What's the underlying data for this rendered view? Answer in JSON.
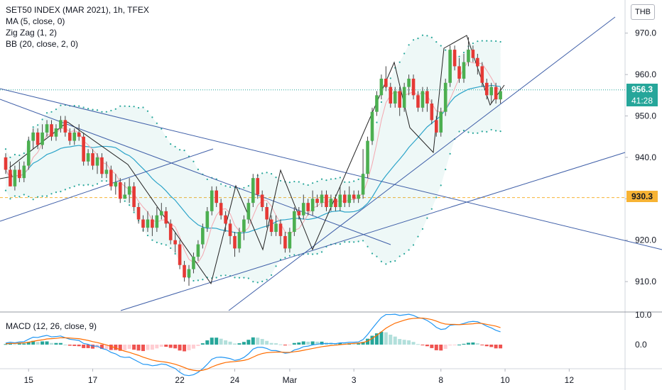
{
  "header": {
    "title": "SET50 INDEX (MAR 2021), 1h, TFEX",
    "indicators": [
      "MA (5, close, 0)",
      "Zig Zag (1, 2)",
      "BB (20, close, 2, 0)"
    ],
    "currency": "THB",
    "macd_label": "MACD (12, 26, close, 9)"
  },
  "price_tag": {
    "value": "956.3",
    "countdown": "41:28",
    "color": "#26a69a"
  },
  "ref_tag": {
    "value": "930.3",
    "color": "#f7b334"
  },
  "chart_data": {
    "type": "line",
    "title": "SET50 INDEX (MAR 2021), 1h, TFEX",
    "y_axis": {
      "ticks": [
        910.0,
        920.0,
        930.0,
        940.0,
        950.0,
        960.0,
        970.0
      ],
      "range": [
        903,
        978
      ]
    },
    "x_axis": {
      "tick_labels": [
        "15",
        "17",
        "22",
        "24",
        "Mar",
        "3",
        "8",
        "10",
        "12"
      ],
      "range_bars": [
        0,
        145
      ]
    },
    "last_price": 956.3,
    "reference_level": 930.3,
    "candles": [
      [
        940,
        937,
        941,
        936
      ],
      [
        937,
        933,
        939,
        933
      ],
      [
        933,
        937,
        938,
        932
      ],
      [
        937,
        935,
        939,
        934
      ],
      [
        935,
        938,
        939,
        934
      ],
      [
        938,
        944,
        945,
        937
      ],
      [
        944,
        946,
        947,
        942
      ],
      [
        946,
        943,
        947,
        942
      ],
      [
        943,
        946,
        948,
        942
      ],
      [
        946,
        948,
        949,
        945
      ],
      [
        948,
        945,
        949,
        944
      ],
      [
        945,
        947,
        948,
        944
      ],
      [
        947,
        949,
        950,
        946
      ],
      [
        949,
        946,
        950,
        945
      ],
      [
        946,
        944,
        947,
        943
      ],
      [
        944,
        946,
        947,
        943
      ],
      [
        946,
        945,
        948,
        944
      ],
      [
        945,
        939,
        946,
        938
      ],
      [
        939,
        941,
        942,
        938
      ],
      [
        941,
        938,
        942,
        937
      ],
      [
        938,
        940,
        941,
        936
      ],
      [
        940,
        936,
        941,
        935
      ],
      [
        936,
        937,
        939,
        935
      ],
      [
        937,
        933,
        938,
        932
      ],
      [
        933,
        934,
        936,
        931
      ],
      [
        934,
        930,
        935,
        929
      ],
      [
        930,
        931,
        934,
        930
      ],
      [
        931,
        933,
        935,
        929
      ],
      [
        933,
        928,
        934,
        927
      ],
      [
        928,
        925,
        929,
        924
      ],
      [
        925,
        923,
        926,
        922
      ],
      [
        923,
        925,
        927,
        922
      ],
      [
        925,
        923,
        926,
        921
      ],
      [
        923,
        926,
        928,
        922
      ],
      [
        926,
        927,
        929,
        925
      ],
      [
        927,
        924,
        928,
        923
      ],
      [
        924,
        920,
        925,
        919
      ],
      [
        920,
        919,
        922,
        917
      ],
      [
        919,
        914,
        920,
        913
      ],
      [
        914,
        911,
        915,
        910
      ],
      [
        911,
        913,
        914,
        909
      ],
      [
        913,
        916,
        917,
        912
      ],
      [
        916,
        919,
        920,
        915
      ],
      [
        919,
        923,
        924,
        918
      ],
      [
        923,
        927,
        928,
        922
      ],
      [
        927,
        932,
        933,
        926
      ],
      [
        932,
        929,
        933,
        928
      ],
      [
        929,
        926,
        930,
        925
      ],
      [
        926,
        924,
        927,
        922
      ],
      [
        924,
        921,
        925,
        919
      ],
      [
        921,
        918,
        922,
        916
      ],
      [
        918,
        922,
        923,
        917
      ],
      [
        922,
        925,
        926,
        920
      ],
      [
        925,
        929,
        930,
        924
      ],
      [
        929,
        935,
        936,
        928
      ],
      [
        935,
        931,
        936,
        930
      ],
      [
        931,
        928,
        932,
        927
      ],
      [
        928,
        925,
        929,
        923
      ],
      [
        925,
        922,
        926,
        921
      ],
      [
        922,
        924,
        926,
        921
      ],
      [
        924,
        921,
        925,
        919
      ],
      [
        921,
        918,
        922,
        917
      ],
      [
        918,
        922,
        923,
        917
      ],
      [
        922,
        927,
        928,
        921
      ],
      [
        927,
        926,
        928,
        925
      ],
      [
        926,
        929,
        931,
        925
      ],
      [
        929,
        927,
        930,
        926
      ],
      [
        927,
        930,
        932,
        926
      ],
      [
        930,
        929,
        931,
        928
      ],
      [
        929,
        931,
        932,
        928
      ],
      [
        931,
        928,
        932,
        927
      ],
      [
        928,
        930,
        931,
        927
      ],
      [
        930,
        928,
        931,
        927
      ],
      [
        928,
        931,
        933,
        927
      ],
      [
        931,
        929,
        932,
        928
      ],
      [
        929,
        931,
        933,
        928
      ],
      [
        931,
        930,
        932,
        929
      ],
      [
        930,
        931,
        932,
        929
      ],
      [
        931,
        936,
        942,
        930
      ],
      [
        936,
        944,
        945,
        935
      ],
      [
        944,
        951,
        952,
        943
      ],
      [
        951,
        955,
        956,
        950
      ],
      [
        955,
        959,
        960,
        954
      ],
      [
        959,
        957,
        962,
        956
      ],
      [
        957,
        953,
        958,
        952
      ],
      [
        953,
        956,
        957,
        952
      ],
      [
        956,
        952,
        957,
        950
      ],
      [
        952,
        957,
        958,
        951
      ],
      [
        957,
        959,
        960,
        955
      ],
      [
        959,
        955,
        960,
        954
      ],
      [
        955,
        952,
        956,
        951
      ],
      [
        952,
        956,
        957,
        951
      ],
      [
        956,
        953,
        957,
        951
      ],
      [
        953,
        949,
        954,
        948
      ],
      [
        949,
        946,
        950,
        945
      ],
      [
        946,
        951,
        952,
        945
      ],
      [
        951,
        958,
        959,
        950
      ],
      [
        958,
        966,
        967,
        957
      ],
      [
        966,
        962,
        967,
        961
      ],
      [
        962,
        959,
        964,
        958
      ],
      [
        959,
        963,
        965,
        958
      ],
      [
        963,
        966,
        969,
        962
      ],
      [
        966,
        964,
        967,
        963
      ],
      [
        964,
        962,
        965,
        960
      ],
      [
        962,
        958,
        963,
        957
      ],
      [
        958,
        955,
        959,
        954
      ],
      [
        955,
        957,
        958,
        953
      ],
      [
        957,
        954,
        958,
        953
      ],
      [
        954,
        956,
        957,
        953
      ]
    ],
    "series": [
      {
        "name": "MACD",
        "color": "#2196f3"
      },
      {
        "name": "Signal",
        "color": "#ff6d00"
      }
    ],
    "macd_axis_ticks": [
      0.0,
      10.0
    ],
    "macd_values": [
      0.5,
      0.8,
      0.6,
      0.9,
      1.0,
      1.8,
      2.5,
      2.4,
      2.8,
      3.1,
      2.6,
      2.7,
      2.9,
      2.3,
      1.8,
      1.6,
      1.4,
      0.4,
      0.1,
      -0.5,
      -0.5,
      -1.3,
      -1.7,
      -2.6,
      -3.1,
      -4.0,
      -4.3,
      -4.2,
      -5.0,
      -5.8,
      -6.6,
      -6.7,
      -7.1,
      -6.9,
      -6.5,
      -6.7,
      -7.4,
      -8.0,
      -9.3,
      -10.2,
      -10.4,
      -10.1,
      -9.3,
      -8.1,
      -6.6,
      -4.9,
      -4.3,
      -4.2,
      -4.4,
      -4.7,
      -5.3,
      -5.0,
      -4.3,
      -3.1,
      -1.5,
      -0.9,
      -0.9,
      -1.3,
      -2.0,
      -2.0,
      -2.4,
      -2.9,
      -2.7,
      -1.8,
      -1.4,
      -0.7,
      -0.5,
      -0.1,
      0.1,
      0.4,
      0.3,
      0.4,
      0.3,
      0.6,
      0.6,
      0.8,
      0.8,
      0.9,
      1.7,
      3.4,
      5.4,
      7.3,
      9.1,
      10.1,
      10.1,
      10.2,
      9.8,
      10.0,
      10.2,
      9.8,
      9.1,
      8.8,
      8.1,
      7.1,
      5.8,
      5.1,
      5.3,
      6.5,
      6.7,
      6.7,
      7.1,
      7.6,
      7.8,
      7.7,
      7.0,
      6.2,
      5.6,
      4.8,
      4.3
    ],
    "signal_values": [
      0.3,
      0.4,
      0.4,
      0.5,
      0.6,
      0.8,
      1.1,
      1.4,
      1.6,
      1.9,
      2.0,
      2.1,
      2.3,
      2.3,
      2.2,
      2.1,
      2.0,
      1.7,
      1.4,
      1.0,
      0.7,
      0.3,
      -0.1,
      -0.6,
      -1.1,
      -1.7,
      -2.2,
      -2.6,
      -3.1,
      -3.6,
      -4.2,
      -4.7,
      -5.2,
      -5.5,
      -5.7,
      -5.9,
      -6.2,
      -6.6,
      -7.1,
      -7.7,
      -8.3,
      -8.6,
      -8.8,
      -8.6,
      -8.2,
      -7.5,
      -6.9,
      -6.4,
      -6.0,
      -5.8,
      -5.7,
      -5.5,
      -5.3,
      -4.9,
      -4.2,
      -3.5,
      -3.0,
      -2.7,
      -2.6,
      -2.5,
      -2.5,
      -2.6,
      -2.6,
      -2.4,
      -2.2,
      -1.9,
      -1.6,
      -1.3,
      -1.0,
      -0.7,
      -0.5,
      -0.3,
      -0.2,
      0.0,
      0.1,
      0.3,
      0.4,
      0.5,
      0.7,
      1.2,
      2.1,
      3.1,
      4.3,
      5.5,
      6.4,
      7.2,
      7.7,
      8.2,
      8.6,
      8.8,
      8.9,
      8.9,
      8.7,
      8.4,
      7.9,
      7.3,
      6.9,
      6.8,
      6.8,
      6.7,
      6.8,
      6.9,
      7.0,
      7.2,
      7.1,
      6.8,
      6.5,
      6.2,
      5.7
    ]
  }
}
